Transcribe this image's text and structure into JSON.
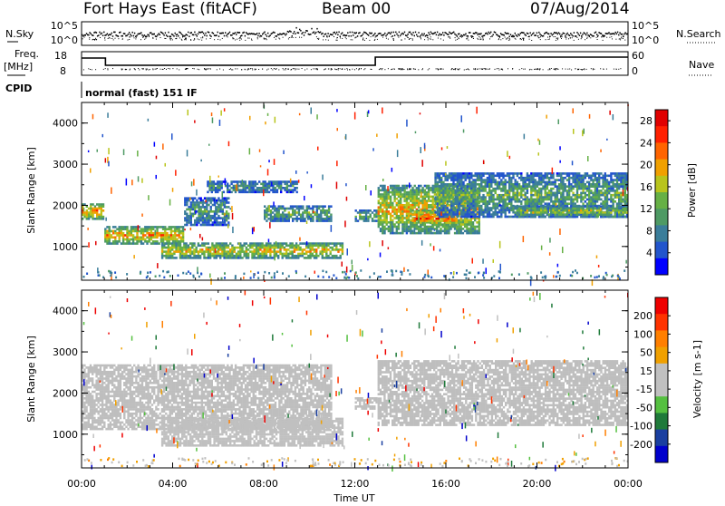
{
  "header": {
    "station": "Fort Hays East (fitACF)",
    "beam": "Beam 00",
    "date": "07/Aug/2014"
  },
  "strip": {
    "nsky_label": "N.Sky",
    "nsky_ticks": [
      "10^5",
      "10^0"
    ],
    "nsearch_label": "N.Search",
    "freq_label": "Freq.",
    "freq_unit": "[MHz]",
    "freq_ticks": [
      "18",
      "8"
    ],
    "nave_label": "Nave",
    "nave_ticks": [
      "60",
      "0"
    ],
    "cpid_label": "CPID",
    "cpid_text": "normal (fast) 151 IF"
  },
  "colors": {
    "power_scale": [
      "#0000ff",
      "#2255cc",
      "#3a7d9a",
      "#4e9a64",
      "#66b045",
      "#b8c41c",
      "#f0a000",
      "#ff6400",
      "#ff2000",
      "#e00000"
    ],
    "velocity_scale": [
      "#0000cc",
      "#1a3fa0",
      "#1f7a3a",
      "#55c040",
      "#c0c0c0",
      "#c0c0c0",
      "#f0a000",
      "#ff7f00",
      "#ff3300",
      "#ee0000"
    ],
    "ground_scatter": "#bebebe"
  },
  "chart_data": [
    {
      "type": "heatmap",
      "name": "power",
      "xlabel": "",
      "ylabel": "Slant Range [km]",
      "x_ticks": [
        "00:00",
        "04:00",
        "08:00",
        "12:00",
        "16:00",
        "20:00",
        "00:00"
      ],
      "y_ticks": [
        1000,
        2000,
        3000,
        4000
      ],
      "xlim": [
        0,
        24
      ],
      "ylim": [
        180,
        4500
      ],
      "colorbar_label": "Power [dB]",
      "colorbar_ticks": [
        4,
        8,
        12,
        16,
        20,
        24,
        28
      ],
      "colorbar_range": [
        0,
        30
      ],
      "features": [
        {
          "t": [
            0.0,
            1.0
          ],
          "r": [
            1650,
            2050
          ],
          "value": 22
        },
        {
          "t": [
            1.0,
            4.5
          ],
          "r": [
            1050,
            1500
          ],
          "value": 20
        },
        {
          "t": [
            4.5,
            6.5
          ],
          "r": [
            1500,
            2200
          ],
          "value": 10
        },
        {
          "t": [
            3.5,
            11.5
          ],
          "r": [
            700,
            1100
          ],
          "value": 18
        },
        {
          "t": [
            5.5,
            9.5
          ],
          "r": [
            2300,
            2600
          ],
          "value": 10
        },
        {
          "t": [
            8.0,
            11.0
          ],
          "r": [
            1600,
            2000
          ],
          "value": 12
        },
        {
          "t": [
            12.0,
            13.0
          ],
          "r": [
            1600,
            1900
          ],
          "value": 13
        },
        {
          "t": [
            13.0,
            17.5
          ],
          "r": [
            1300,
            2500
          ],
          "value": 18
        },
        {
          "t": [
            14.5,
            16.5
          ],
          "r": [
            1500,
            1900
          ],
          "value": 25
        },
        {
          "t": [
            15.5,
            24.0
          ],
          "r": [
            1700,
            2800
          ],
          "value": 11
        },
        {
          "t": [
            19.0,
            24.0
          ],
          "r": [
            1700,
            2000
          ],
          "value": 16
        }
      ]
    },
    {
      "type": "heatmap",
      "name": "velocity",
      "xlabel": "Time UT",
      "ylabel": "Slant Range [km]",
      "x_ticks": [
        "00:00",
        "04:00",
        "08:00",
        "12:00",
        "16:00",
        "20:00",
        "00:00"
      ],
      "y_ticks": [
        1000,
        2000,
        3000,
        4000
      ],
      "xlim": [
        0,
        24
      ],
      "ylim": [
        180,
        4500
      ],
      "colorbar_label": "Velocity [m s-1]",
      "colorbar_ticks": [
        200,
        100,
        50,
        15,
        -15,
        -50,
        -100,
        -200
      ],
      "colorbar_range": [
        -250,
        250
      ],
      "features": [
        {
          "t": [
            0.0,
            11.0
          ],
          "r": [
            1100,
            2700
          ],
          "value": 0
        },
        {
          "t": [
            3.5,
            11.5
          ],
          "r": [
            700,
            1400
          ],
          "value": 40
        },
        {
          "t": [
            12.0,
            13.0
          ],
          "r": [
            1600,
            1900
          ],
          "value": 0
        },
        {
          "t": [
            13.0,
            24.0
          ],
          "r": [
            1200,
            2800
          ],
          "value": 0
        }
      ]
    }
  ]
}
